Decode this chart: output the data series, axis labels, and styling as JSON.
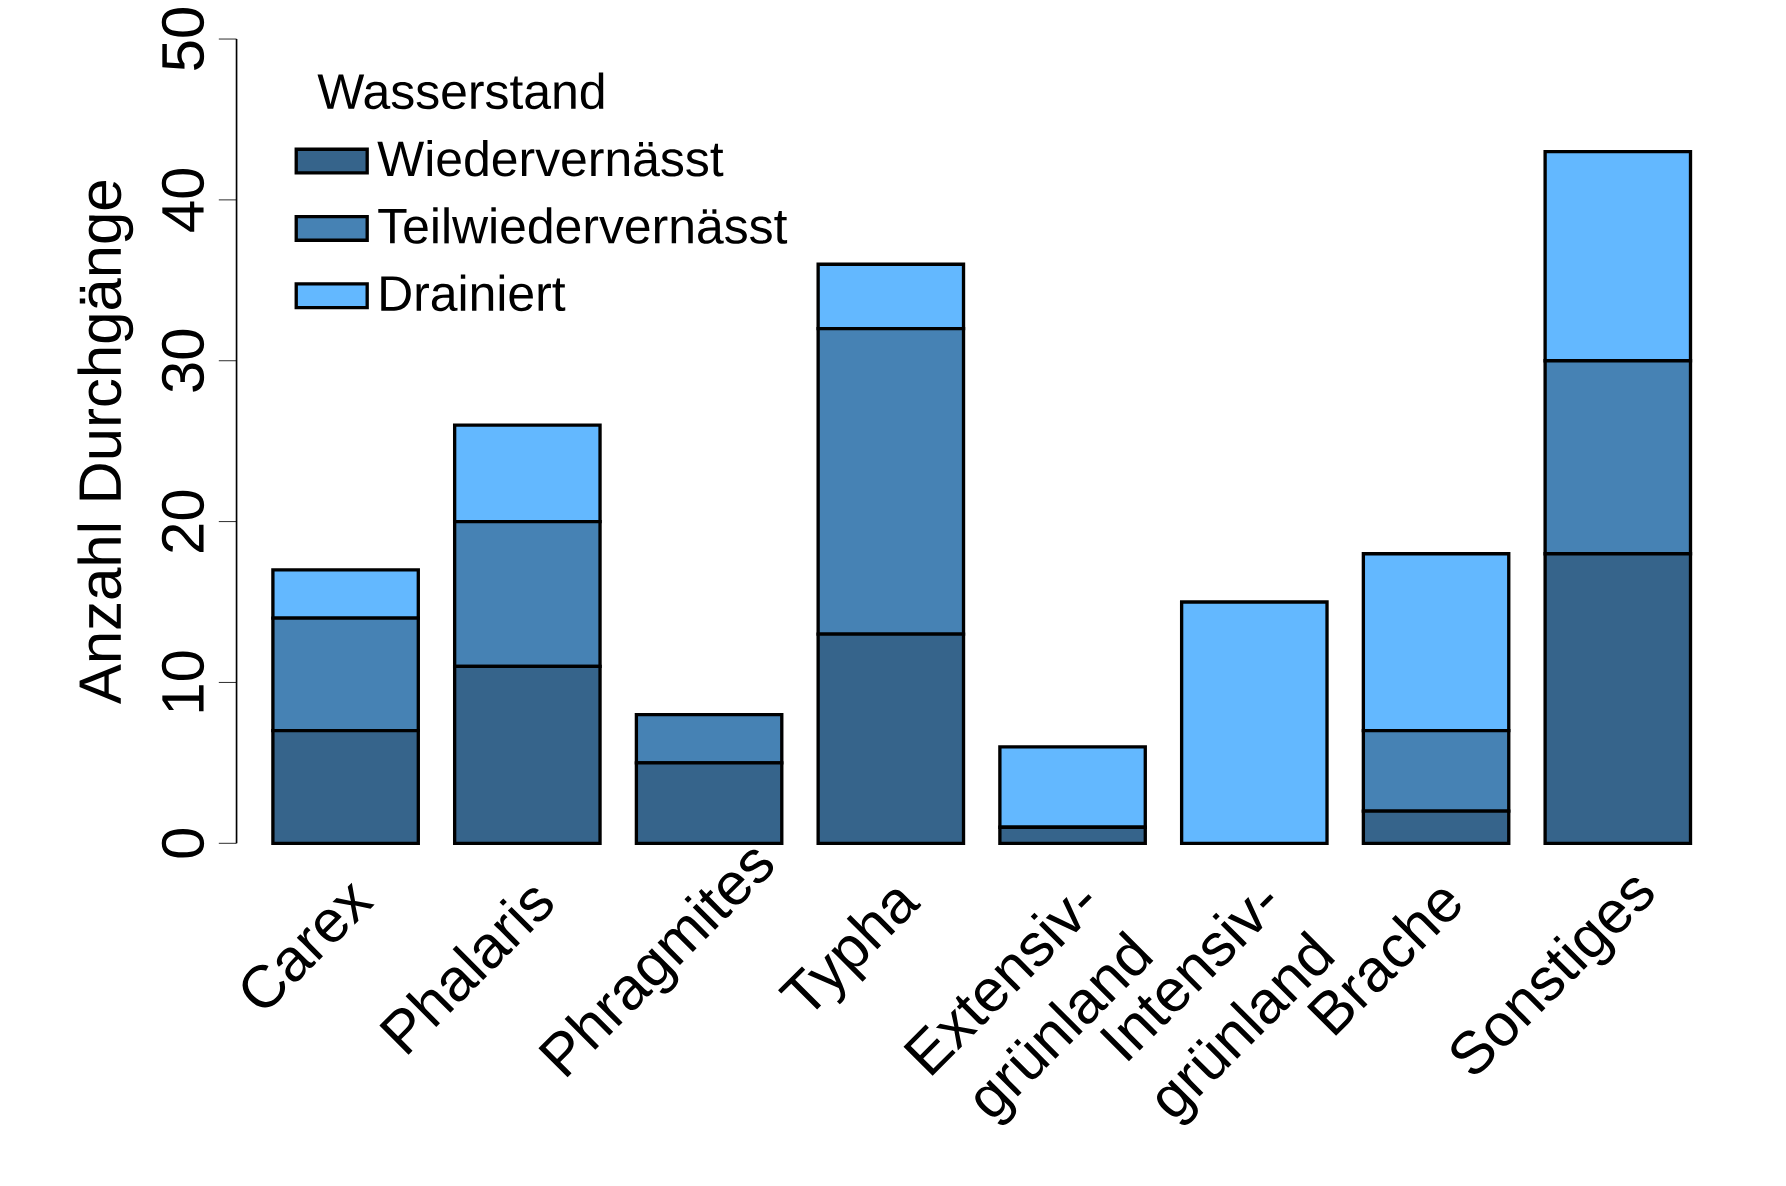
{
  "chart_data": {
    "type": "bar",
    "stacked": true,
    "ylabel": "Anzahl Durchgänge",
    "legend_title": "Wasserstand",
    "categories": [
      "Carex",
      "Phalaris",
      "Phragmites",
      "Typha",
      "Extensiv-grünland",
      "Intensiv-grünland",
      "Brache",
      "Sonstiges"
    ],
    "series": [
      {
        "name": "Wiedervernässt",
        "color": "#36648b",
        "values": [
          7,
          11,
          5,
          13,
          1,
          0,
          2,
          18
        ]
      },
      {
        "name": "Teilwiedervernässt",
        "color": "#4682b4",
        "values": [
          7,
          9,
          3,
          19,
          0,
          0,
          5,
          12
        ]
      },
      {
        "name": "Drainiert",
        "color": "#63b8ff",
        "values": [
          3,
          6,
          0,
          4,
          5,
          15,
          11,
          13
        ]
      }
    ],
    "ylim": [
      0,
      50
    ],
    "yticks": [
      0,
      10,
      20,
      30,
      40,
      50
    ],
    "grid": false,
    "legend": "top left"
  }
}
